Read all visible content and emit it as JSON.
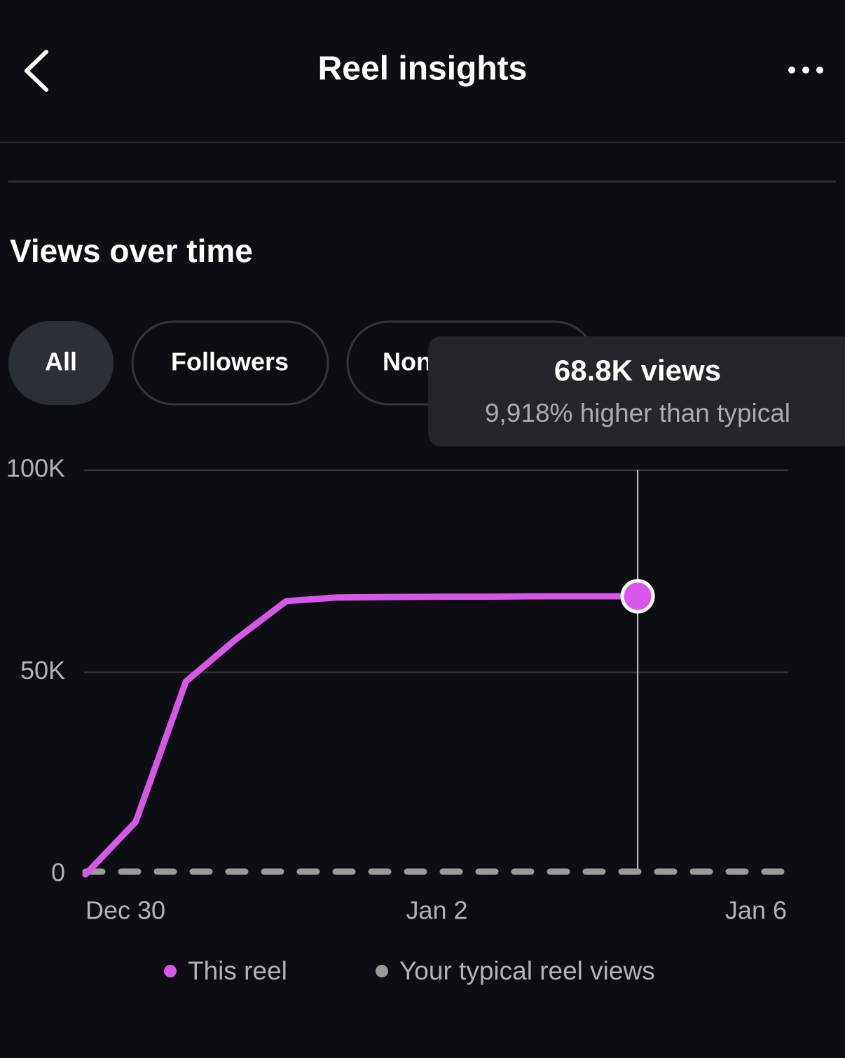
{
  "header": {
    "title": "Reel insights"
  },
  "section": {
    "title": "Views over time"
  },
  "filters": [
    "All",
    "Followers",
    "Non-followers"
  ],
  "tooltip": {
    "title": "68.8K views",
    "subtitle": "9,918% higher than typical"
  },
  "chart_data": {
    "type": "line",
    "categories": [
      "Dec 30",
      null,
      null,
      null,
      null,
      null,
      null,
      "Jan 2",
      null,
      null,
      null,
      null,
      null,
      null,
      "Jan 6"
    ],
    "series": [
      {
        "name": "This reel",
        "color": "#d957e8",
        "values": [
          0,
          13000,
          47700,
          58200,
          67600,
          68500,
          68600,
          68700,
          68700,
          68800,
          68800,
          68800,
          null,
          null,
          null
        ]
      },
      {
        "name": "Your typical reel views",
        "color": "#9a9a9a",
        "values": [
          690,
          690,
          690,
          690,
          690,
          690,
          690,
          690,
          690,
          690,
          690,
          690,
          690,
          690,
          690
        ]
      }
    ],
    "ylim": [
      0,
      100000
    ],
    "yticks": [
      0,
      {
        "value": 50000,
        "label": "50K"
      },
      {
        "value": 100000,
        "label": "100K"
      }
    ],
    "grid": true
  }
}
